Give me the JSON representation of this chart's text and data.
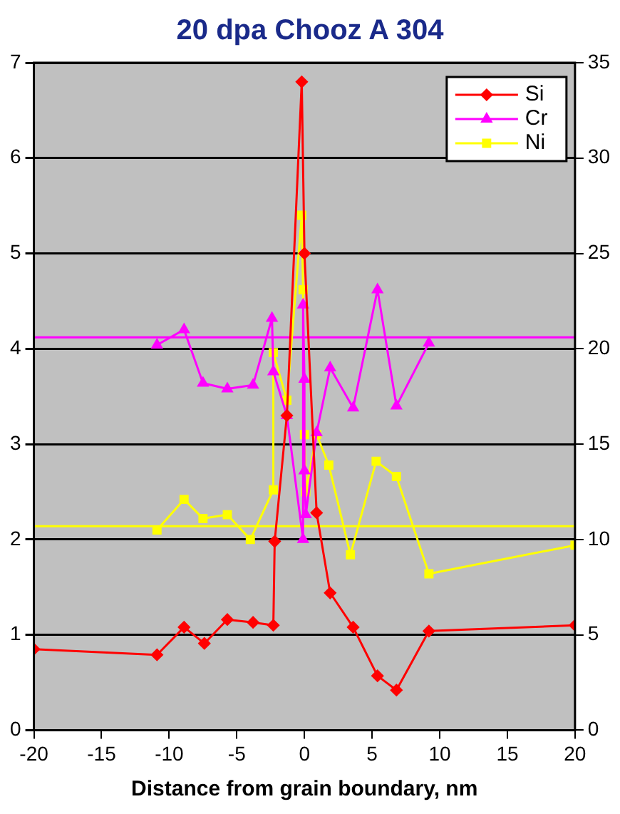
{
  "chart_data": {
    "type": "line",
    "title": "20 dpa Chooz A 304",
    "xlabel": "Distance from grain boundary, nm",
    "xlim": [
      -20,
      20
    ],
    "xticks": [
      -20,
      -15,
      -10,
      -5,
      0,
      5,
      10,
      15,
      20
    ],
    "ylim": [
      0,
      7
    ],
    "yticks": [
      0,
      1,
      2,
      3,
      4,
      5,
      6,
      7
    ],
    "y2lim": [
      0,
      35
    ],
    "y2ticks": [
      0,
      5,
      10,
      15,
      20,
      25,
      30,
      35
    ],
    "grid": "y",
    "legend": "top right",
    "line_style": "solid",
    "series": [
      {
        "name": "Si",
        "color": "#ff0000",
        "marker": "diamond",
        "x": [
          -20,
          -10.9,
          -8.9,
          -7.4,
          -5.7,
          -3.8,
          -2.3,
          -2.2,
          -1.3,
          -0.2,
          0,
          0.9,
          1.9,
          3.6,
          5.4,
          6.8,
          9.2,
          20
        ],
        "values": [
          0.85,
          0.79,
          1.08,
          0.91,
          1.16,
          1.13,
          1.1,
          1.98,
          3.3,
          6.8,
          5.0,
          2.28,
          1.44,
          1.08,
          0.57,
          0.42,
          1.04,
          1.1
        ]
      },
      {
        "name": "Cr",
        "color": "#ff00ff",
        "marker": "triangle",
        "axis": "y2",
        "x": [
          -10.9,
          -8.9,
          -7.5,
          -5.7,
          -3.8,
          -2.4,
          -2.3,
          -1.3,
          -0.1,
          -0.1,
          0,
          0,
          0.1,
          0.9,
          1.9,
          3.6,
          5.4,
          6.8,
          9.2
        ],
        "values": [
          20.2,
          21.0,
          18.2,
          17.9,
          18.1,
          21.6,
          18.8,
          16.5,
          10.0,
          22.3,
          18.4,
          13.6,
          11.3,
          15.6,
          19.0,
          16.9,
          23.1,
          17.0,
          20.3
        ]
      },
      {
        "name": "Ni",
        "color": "#ffff00",
        "marker": "square",
        "axis": "y2",
        "x": [
          -10.9,
          -8.9,
          -7.5,
          -5.7,
          -4.0,
          -2.3,
          -2.3,
          -1.3,
          -0.2,
          -0.1,
          0,
          0.1,
          0.9,
          1.8,
          3.4,
          5.3,
          6.8,
          9.2,
          20
        ],
        "values": [
          10.5,
          12.1,
          11.1,
          11.3,
          10.0,
          12.6,
          19.8,
          17.3,
          27.0,
          23.1,
          15.5,
          12.5,
          15.5,
          13.9,
          9.2,
          14.1,
          13.3,
          8.2,
          9.7
        ]
      }
    ],
    "ref_lines": [
      {
        "axis": "y2",
        "value": 20.6,
        "color": "#ff00ff"
      },
      {
        "axis": "y2",
        "value": 10.7,
        "color": "#ffff00"
      }
    ]
  }
}
